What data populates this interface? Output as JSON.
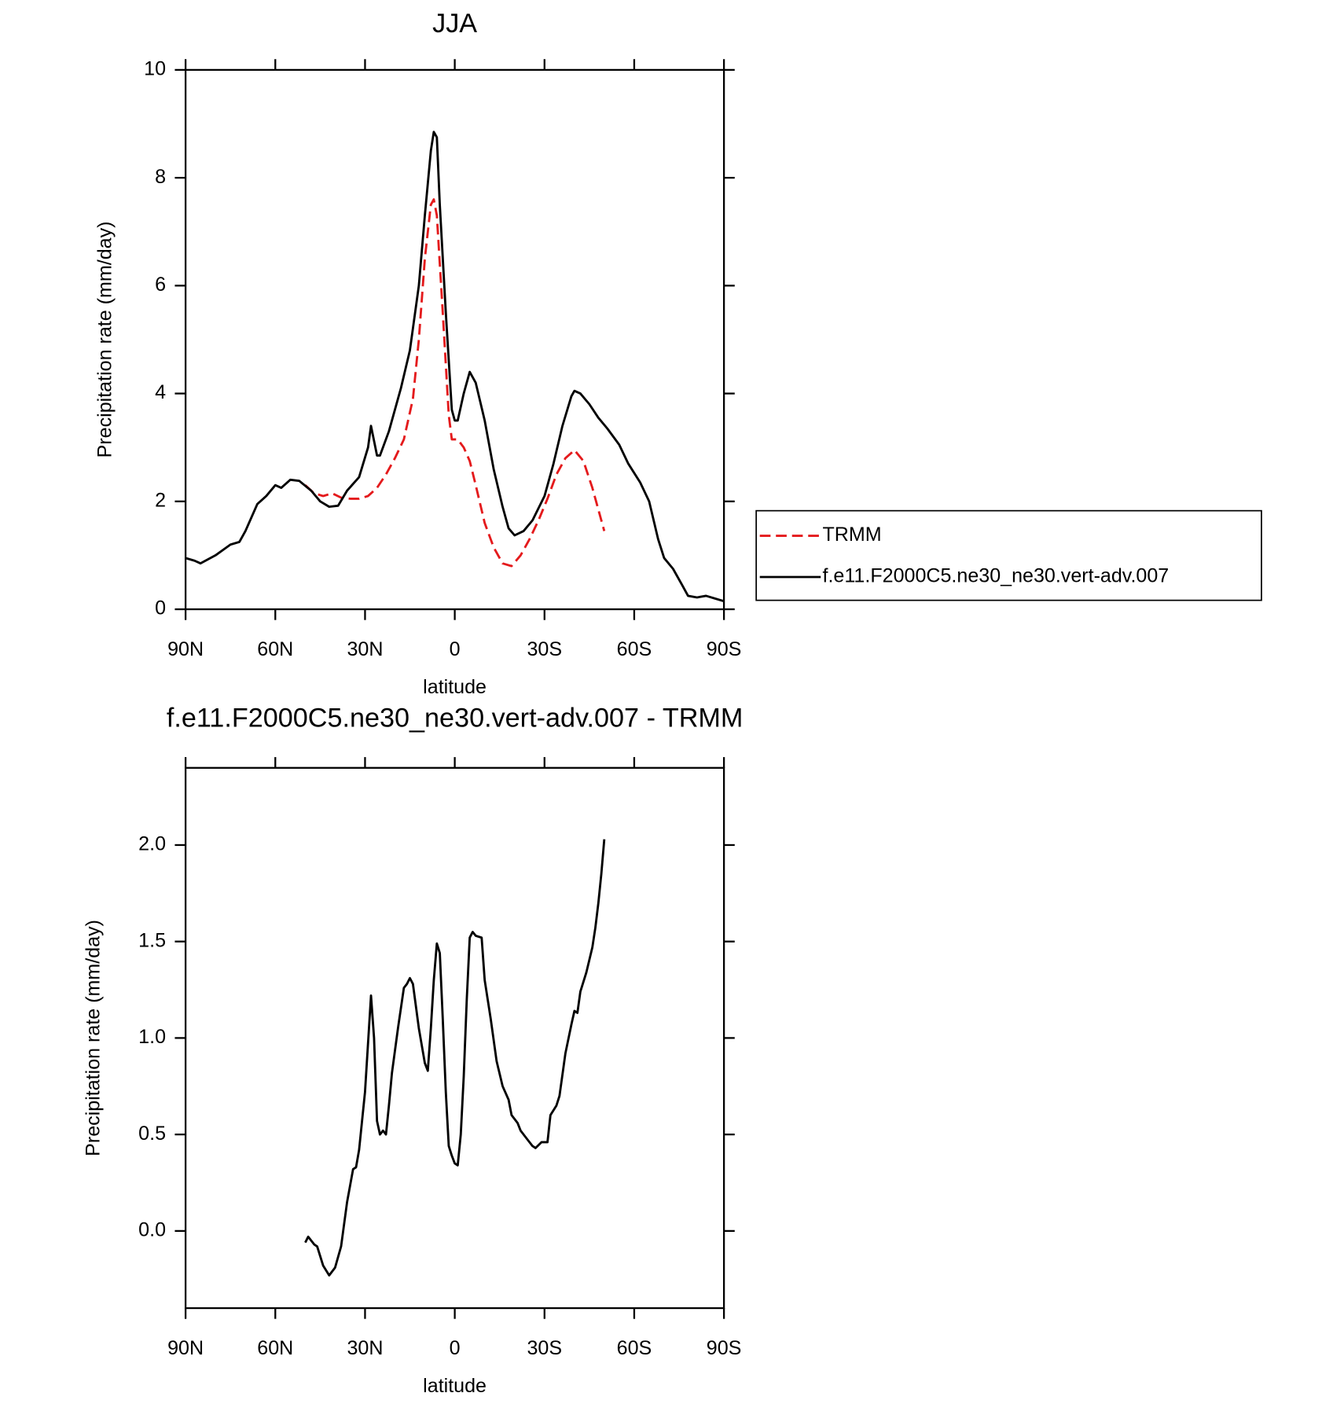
{
  "chart_data": [
    {
      "type": "line",
      "title": "JJA",
      "xlabel": "latitude",
      "ylabel": "Precipitation rate (mm/day)",
      "xlim": [
        90,
        -90
      ],
      "xticks": [
        {
          "value": 90,
          "label": "90N"
        },
        {
          "value": 60,
          "label": "60N"
        },
        {
          "value": 30,
          "label": "30N"
        },
        0,
        {
          "value": -30,
          "label": "30S"
        },
        {
          "value": -60,
          "label": "60S"
        },
        {
          "value": -90,
          "label": "90S"
        }
      ],
      "ylim": [
        0,
        10
      ],
      "yticks": [
        0,
        2,
        4,
        6,
        8,
        10
      ],
      "legend": "right",
      "series": [
        {
          "name": "TRMM",
          "color": "#e41a1c",
          "dash": true,
          "x": [
            50,
            47,
            44,
            41,
            38,
            35,
            32,
            29,
            26,
            23,
            20,
            17,
            14,
            12,
            10,
            8,
            7,
            6,
            4,
            2,
            1,
            -1,
            -3,
            -5,
            -7,
            -10,
            -13,
            -16,
            -19,
            -22,
            -25,
            -28,
            -31,
            -34,
            -37,
            -40,
            -43,
            -46,
            -50
          ],
          "values": [
            2.3,
            2.15,
            2.1,
            2.15,
            2.07,
            2.05,
            2.05,
            2.1,
            2.25,
            2.5,
            2.8,
            3.15,
            3.9,
            5.0,
            6.5,
            7.5,
            7.6,
            7.3,
            5.5,
            3.6,
            3.15,
            3.15,
            3.0,
            2.75,
            2.3,
            1.6,
            1.15,
            0.85,
            0.8,
            1.0,
            1.3,
            1.65,
            2.05,
            2.5,
            2.8,
            2.95,
            2.75,
            2.25,
            1.45
          ]
        },
        {
          "name": "f.e11.F2000C5.ne30_ne30.vert-adv.007",
          "color": "#000000",
          "dash": false,
          "x": [
            90,
            87,
            85,
            80,
            75,
            72,
            70,
            66,
            63,
            60,
            58,
            55,
            52,
            48,
            45,
            42,
            39,
            36,
            32,
            29,
            28,
            26,
            25,
            22,
            18,
            15,
            12,
            10,
            8,
            7,
            6,
            5,
            3,
            1,
            0,
            -1,
            -3,
            -5,
            -7,
            -10,
            -13,
            -16,
            -18,
            -20,
            -23,
            -26,
            -30,
            -33,
            -36,
            -39,
            -40,
            -42,
            -45,
            -48,
            -51,
            -55,
            -58,
            -62,
            -65,
            -68,
            -70,
            -73,
            -76,
            -78,
            -81,
            -84,
            -87,
            -90
          ],
          "values": [
            0.95,
            0.9,
            0.85,
            1.0,
            1.2,
            1.25,
            1.45,
            1.95,
            2.1,
            2.3,
            2.25,
            2.4,
            2.38,
            2.2,
            2.0,
            1.9,
            1.92,
            2.2,
            2.45,
            3.0,
            3.4,
            2.85,
            2.85,
            3.3,
            4.1,
            4.8,
            6.0,
            7.3,
            8.5,
            8.85,
            8.75,
            7.5,
            5.5,
            3.7,
            3.5,
            3.5,
            4.0,
            4.4,
            4.2,
            3.5,
            2.6,
            1.9,
            1.5,
            1.37,
            1.45,
            1.65,
            2.1,
            2.7,
            3.4,
            3.95,
            4.05,
            4.0,
            3.8,
            3.55,
            3.35,
            3.05,
            2.7,
            2.35,
            2.0,
            1.3,
            0.95,
            0.75,
            0.45,
            0.25,
            0.22,
            0.25,
            0.2,
            0.15
          ]
        }
      ]
    },
    {
      "type": "line",
      "title": "f.e11.F2000C5.ne30_ne30.vert-adv.007 - TRMM",
      "xlabel": "latitude",
      "ylabel": "Precipitation rate (mm/day)",
      "xlim": [
        90,
        -90
      ],
      "xticks": [
        {
          "value": 90,
          "label": "90N"
        },
        {
          "value": 60,
          "label": "60N"
        },
        {
          "value": 30,
          "label": "30N"
        },
        0,
        {
          "value": -30,
          "label": "30S"
        },
        {
          "value": -60,
          "label": "60S"
        },
        {
          "value": -90,
          "label": "90S"
        }
      ],
      "ylim": [
        -0.4,
        2.4
      ],
      "yticks": [
        {
          "value": 0,
          "label": "0.0"
        },
        {
          "value": 0.5,
          "label": "0.5"
        },
        {
          "value": 1,
          "label": "1.0"
        },
        {
          "value": 1.5,
          "label": "1.5"
        },
        {
          "value": 2,
          "label": "2.0"
        }
      ],
      "series": [
        {
          "color": "#000000",
          "dash": false,
          "x": [
            50,
            49,
            47,
            46,
            44,
            42,
            40,
            38,
            36,
            34,
            33,
            32,
            30,
            28,
            27,
            26,
            25,
            24,
            23,
            22,
            21,
            19,
            17,
            16,
            15,
            14,
            12,
            10,
            9,
            8,
            7,
            6,
            5,
            4,
            3,
            2,
            1,
            0,
            -1,
            -2,
            -3,
            -4,
            -5,
            -6,
            -7,
            -9,
            -10,
            -12,
            -14,
            -16,
            -18,
            -19,
            -21,
            -22,
            -24,
            -26,
            -27,
            -29,
            -31,
            -32,
            -34,
            -35,
            -37,
            -39,
            -40,
            -41,
            -42,
            -44,
            -46,
            -47,
            -48,
            -49,
            -50
          ],
          "values": [
            -0.06,
            -0.03,
            -0.07,
            -0.08,
            -0.18,
            -0.23,
            -0.19,
            -0.08,
            0.15,
            0.32,
            0.33,
            0.42,
            0.72,
            1.22,
            1.0,
            0.57,
            0.5,
            0.52,
            0.5,
            0.65,
            0.82,
            1.05,
            1.26,
            1.28,
            1.31,
            1.28,
            1.05,
            0.87,
            0.83,
            1.05,
            1.3,
            1.49,
            1.44,
            1.1,
            0.72,
            0.44,
            0.39,
            0.35,
            0.34,
            0.5,
            0.8,
            1.2,
            1.52,
            1.55,
            1.53,
            1.52,
            1.3,
            1.1,
            0.88,
            0.75,
            0.68,
            0.6,
            0.56,
            0.52,
            0.48,
            0.44,
            0.43,
            0.46,
            0.46,
            0.6,
            0.65,
            0.7,
            0.92,
            1.07,
            1.14,
            1.13,
            1.24,
            1.34,
            1.47,
            1.57,
            1.7,
            1.85,
            2.03
          ]
        }
      ]
    }
  ]
}
